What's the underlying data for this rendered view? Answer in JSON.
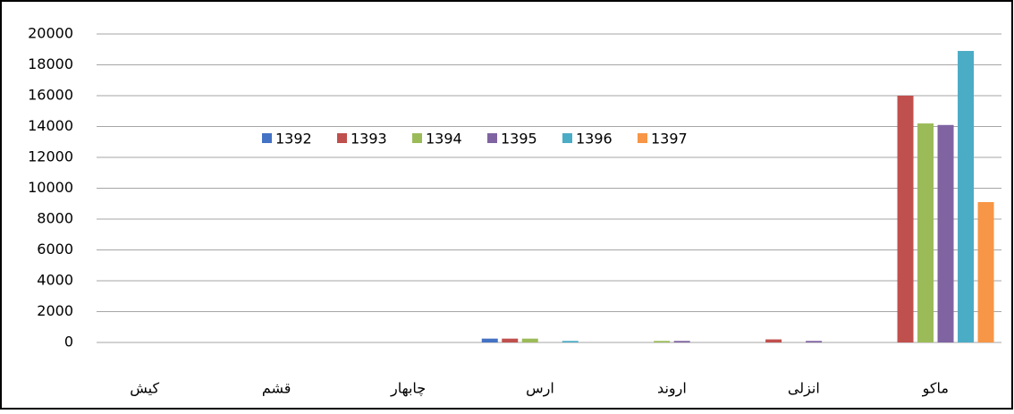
{
  "chart_data": {
    "type": "bar",
    "categories": [
      "کیش",
      "قشم",
      "چابهار",
      "ارس",
      "اروند",
      "انزلی",
      "ماکو"
    ],
    "series": [
      {
        "name": "1392",
        "color": "#4472c4",
        "values": [
          0,
          0,
          0,
          250,
          0,
          0,
          0
        ]
      },
      {
        "name": "1393",
        "color": "#c0504d",
        "values": [
          0,
          0,
          0,
          250,
          0,
          200,
          16000
        ]
      },
      {
        "name": "1394",
        "color": "#9bbb59",
        "values": [
          0,
          0,
          0,
          250,
          100,
          0,
          14200
        ]
      },
      {
        "name": "1395",
        "color": "#8064a2",
        "values": [
          0,
          0,
          0,
          0,
          100,
          100,
          14100
        ]
      },
      {
        "name": "1396",
        "color": "#4bacc6",
        "values": [
          0,
          0,
          0,
          100,
          0,
          0,
          18900
        ]
      },
      {
        "name": "1397",
        "color": "#f79646",
        "values": [
          0,
          0,
          0,
          0,
          0,
          0,
          9100
        ]
      }
    ],
    "ylim": [
      0,
      20000
    ],
    "yticks": [
      0,
      2000,
      4000,
      6000,
      8000,
      10000,
      12000,
      14000,
      16000,
      18000,
      20000
    ],
    "grid": true
  }
}
